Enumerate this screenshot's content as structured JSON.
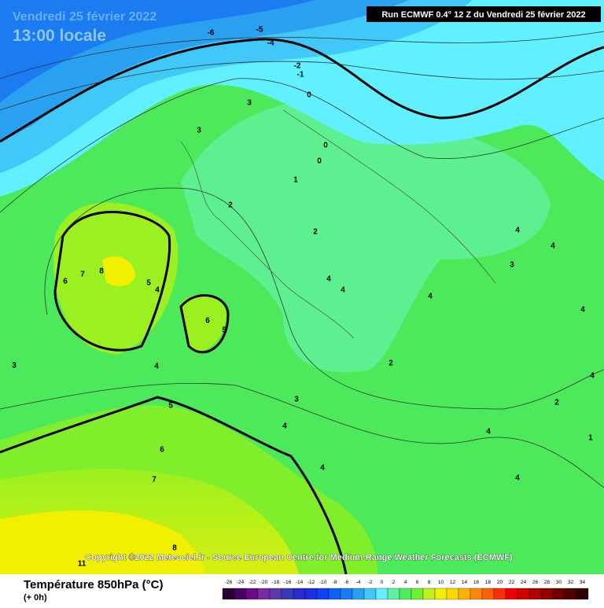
{
  "header": {
    "date": "Vendredi 25 février 2022",
    "time": "13:00 locale",
    "run": "Run ECMWF 0.4° 12 Z du Vendredi 25 février 2022"
  },
  "copyright": "Copyright ©2022 Meteociel.fr - Source European Centre for Medium-Range Weather Forecasts (ECMWF)",
  "footer": {
    "title": "Température 850hPa (°C)",
    "step": "(+ 0h)"
  },
  "legend": {
    "ticks": [
      -26,
      -24,
      -22,
      -20,
      -18,
      -16,
      -14,
      -12,
      -10,
      -8,
      -6,
      -4,
      -2,
      0,
      2,
      4,
      6,
      8,
      10,
      12,
      14,
      16,
      18,
      20,
      22,
      24,
      26,
      28,
      30,
      32,
      34
    ],
    "colors": [
      "#2a0030",
      "#4a0060",
      "#6a0a8a",
      "#7a2aa0",
      "#5a3aa8",
      "#3a3ab8",
      "#2a2ad0",
      "#1a30e0",
      "#1040f0",
      "#1060f8",
      "#1a7cf0",
      "#2aa0f0",
      "#40c8f8",
      "#60f0ff",
      "#60f0a0",
      "#50ec60",
      "#70f030",
      "#c0f020",
      "#f0f000",
      "#ffd800",
      "#ffb000",
      "#ff8800",
      "#ff6000",
      "#ff3000",
      "#f00000",
      "#d00000",
      "#b00000",
      "#900000",
      "#700000",
      "#500000",
      "#300000"
    ]
  },
  "contour_labels": [
    "-6",
    "-5",
    "-4",
    "-2",
    "-1",
    "0",
    "3",
    "3",
    "0",
    "0",
    "1",
    "2",
    "2",
    "8",
    "7",
    "6",
    "5",
    "4",
    "6",
    "5",
    "4",
    "4",
    "4",
    "4",
    "4",
    "3",
    "3",
    "4",
    "4",
    "2",
    "3",
    "4",
    "5",
    "6",
    "7",
    "4",
    "4",
    "4",
    "2",
    "1",
    "4",
    "8",
    "11"
  ]
}
